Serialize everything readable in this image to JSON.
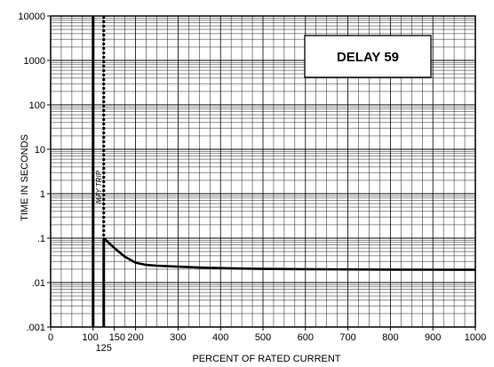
{
  "chart_data": {
    "type": "line",
    "title": "",
    "annotation": "DELAY 59",
    "xlabel": "PERCENT OF RATED CURRENT",
    "ylabel": "TIME IN SECONDS",
    "x_scale": "linear",
    "y_scale": "log",
    "xlim": [
      0,
      1000
    ],
    "ylim": [
      0.001,
      10000
    ],
    "x_ticks": [
      {
        "value": 0,
        "label": "0"
      },
      {
        "value": 100,
        "label": "100"
      },
      {
        "value": 150,
        "label": "150"
      },
      {
        "value": 200,
        "label": "200"
      },
      {
        "value": 300,
        "label": "300"
      },
      {
        "value": 400,
        "label": "400"
      },
      {
        "value": 500,
        "label": "500"
      },
      {
        "value": 600,
        "label": "600"
      },
      {
        "value": 700,
        "label": "700"
      },
      {
        "value": 800,
        "label": "800"
      },
      {
        "value": 900,
        "label": "900"
      },
      {
        "value": 1000,
        "label": "1000"
      }
    ],
    "x_tick_extra": {
      "value": 125,
      "label": "125"
    },
    "y_ticks": [
      {
        "value": 10000,
        "label": "10000"
      },
      {
        "value": 1000,
        "label": "1000"
      },
      {
        "value": 100,
        "label": "100"
      },
      {
        "value": 10,
        "label": "10"
      },
      {
        "value": 1,
        "label": "1"
      },
      {
        "value": 0.1,
        "label": ".1"
      },
      {
        "value": 0.01,
        "label": ".01"
      },
      {
        "value": 0.001,
        "label": ".001"
      }
    ],
    "grid": true,
    "vertical_lines": [
      {
        "x": 100,
        "style": "solid"
      },
      {
        "x": 125,
        "style": "solid",
        "y_from": 0.1
      },
      {
        "x": 125,
        "style": "dashed",
        "y_to": 0.1
      }
    ],
    "may_trip_label": "MAY TRIP",
    "series": [
      {
        "x": [
          125,
          150,
          175,
          200,
          225,
          250,
          300,
          350,
          400,
          450,
          500,
          600,
          700,
          800,
          900,
          1000
        ],
        "y": [
          0.1,
          0.06,
          0.038,
          0.028,
          0.025,
          0.024,
          0.0228,
          0.0218,
          0.0212,
          0.0207,
          0.0204,
          0.02,
          0.0198,
          0.0196,
          0.0195,
          0.0194
        ]
      }
    ]
  }
}
